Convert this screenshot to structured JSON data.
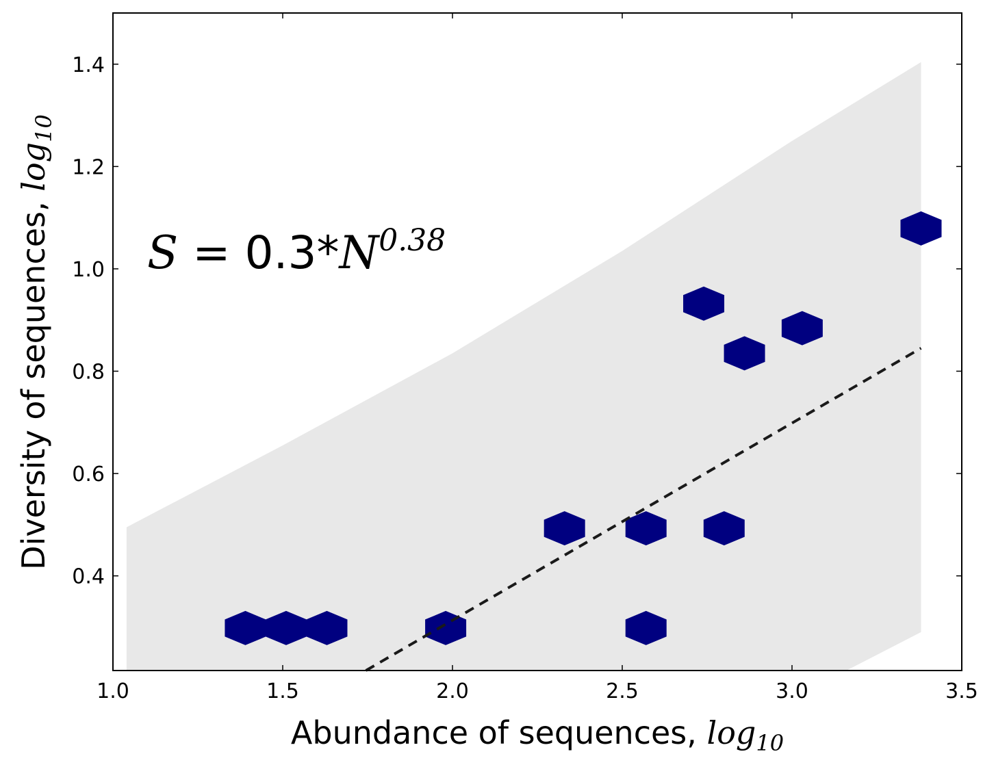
{
  "chart_data": {
    "type": "hexbin",
    "xlabel": {
      "text": "Abundance of sequences, ",
      "math": "log",
      "sub": "10"
    },
    "ylabel": {
      "text": "Diversity of sequences, ",
      "math": "log",
      "sub": "10"
    },
    "xlim": [
      1.0,
      3.5
    ],
    "ylim": [
      0.215,
      1.5
    ],
    "xticks": [
      1.0,
      1.5,
      2.0,
      2.5,
      3.0,
      3.5
    ],
    "xtick_labels": [
      "1.0",
      "1.5",
      "2.0",
      "2.5",
      "3.0",
      "3.5"
    ],
    "yticks": [
      0.4,
      0.6,
      0.8,
      1.0,
      1.2,
      1.4
    ],
    "ytick_labels": [
      "0.4",
      "0.6",
      "0.8",
      "1.0",
      "1.2",
      "1.4"
    ],
    "hex_color": "#000080",
    "hexbins": [
      {
        "x": 1.39,
        "y": 0.298
      },
      {
        "x": 1.51,
        "y": 0.298
      },
      {
        "x": 1.63,
        "y": 0.298
      },
      {
        "x": 1.98,
        "y": 0.298
      },
      {
        "x": 2.57,
        "y": 0.298
      },
      {
        "x": 2.33,
        "y": 0.493
      },
      {
        "x": 2.57,
        "y": 0.493
      },
      {
        "x": 2.8,
        "y": 0.493
      },
      {
        "x": 2.86,
        "y": 0.835
      },
      {
        "x": 2.74,
        "y": 0.932
      },
      {
        "x": 3.03,
        "y": 0.884
      },
      {
        "x": 3.38,
        "y": 1.079
      }
    ],
    "fit_line": {
      "style": "dashed",
      "color": "#1a1a1a",
      "points": [
        [
          1.745,
          0.215
        ],
        [
          3.38,
          0.845
        ]
      ]
    },
    "confidence_band": {
      "color": "#e8e8e8",
      "upper": [
        [
          1.04,
          0.495
        ],
        [
          1.5,
          0.655
        ],
        [
          2.0,
          0.835
        ],
        [
          2.5,
          1.035
        ],
        [
          3.0,
          1.25
        ],
        [
          3.38,
          1.404
        ]
      ],
      "lower": [
        [
          1.04,
          0.215
        ],
        [
          3.16,
          0.215
        ],
        [
          3.38,
          0.29
        ]
      ]
    },
    "annotation": {
      "S": "S",
      "eq": " = 0.3*",
      "N": "N",
      "exp": "0.38"
    }
  }
}
